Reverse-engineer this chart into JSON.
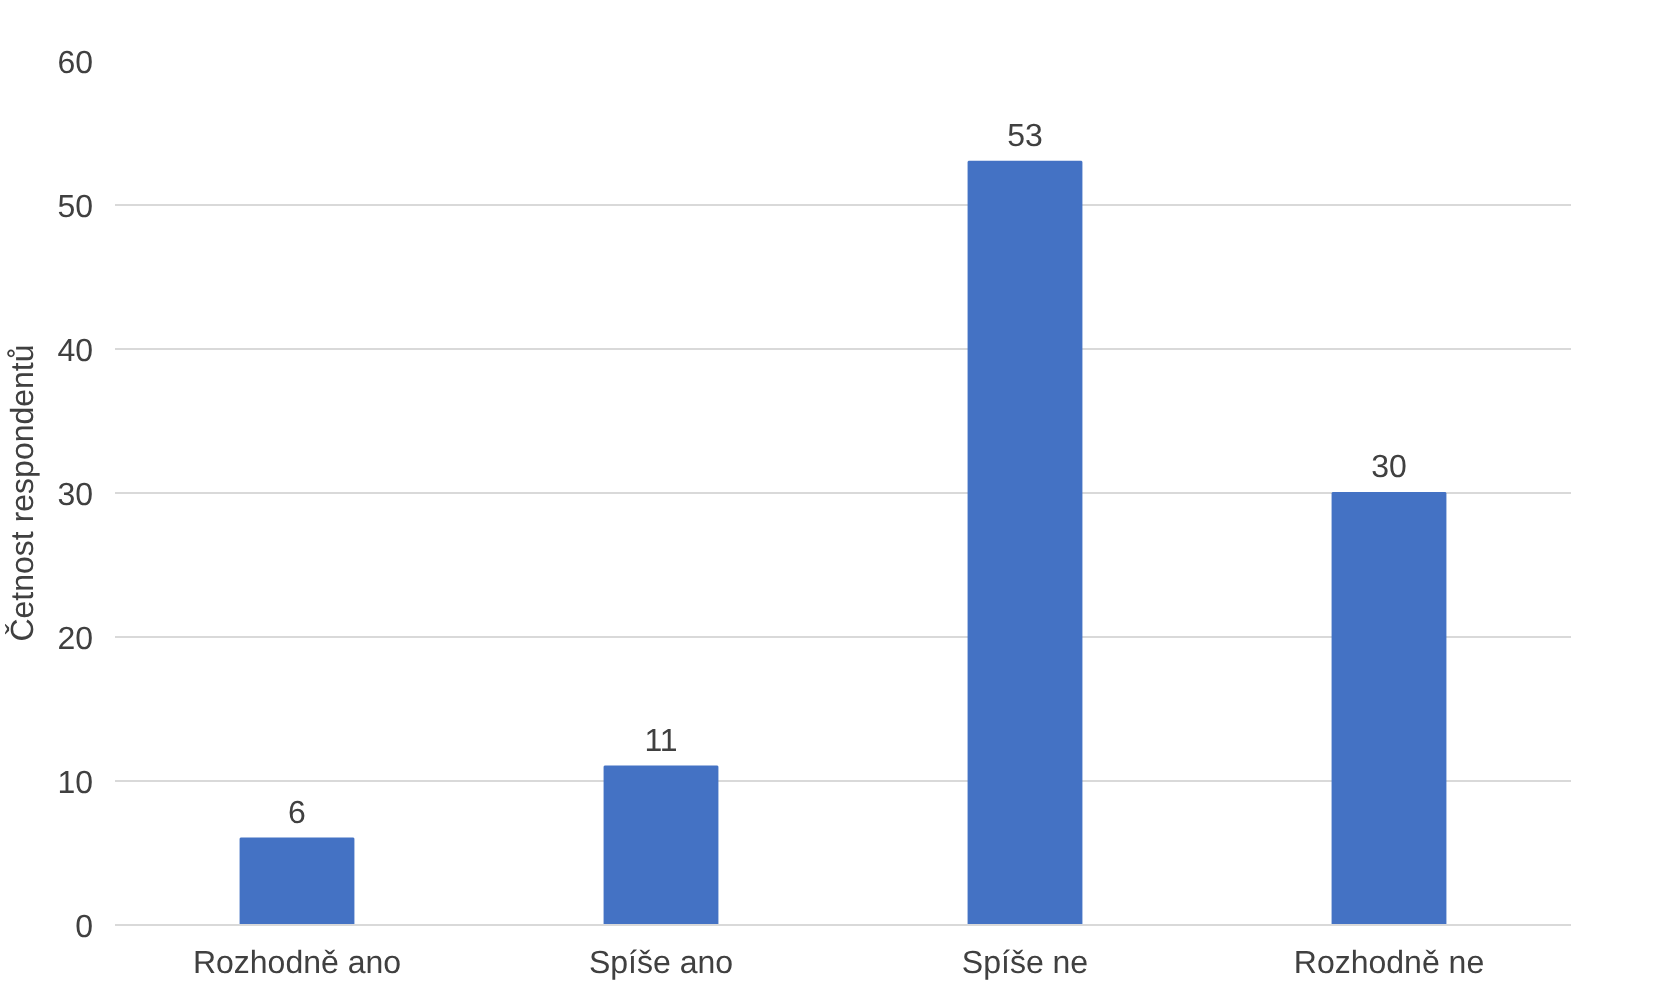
{
  "chart_data": {
    "type": "bar",
    "ylabel": "Četnost respondentů",
    "categories": [
      "Rozhodně ano",
      "Spíše ano",
      "Spíše ne",
      "Rozhodně ne"
    ],
    "values": [
      6,
      11,
      53,
      30
    ],
    "color": "#4472c4",
    "ylim": [
      0,
      60
    ],
    "yticks": [
      0,
      10,
      20,
      30,
      40,
      50,
      60
    ],
    "grid": "y",
    "data_labels": true
  }
}
